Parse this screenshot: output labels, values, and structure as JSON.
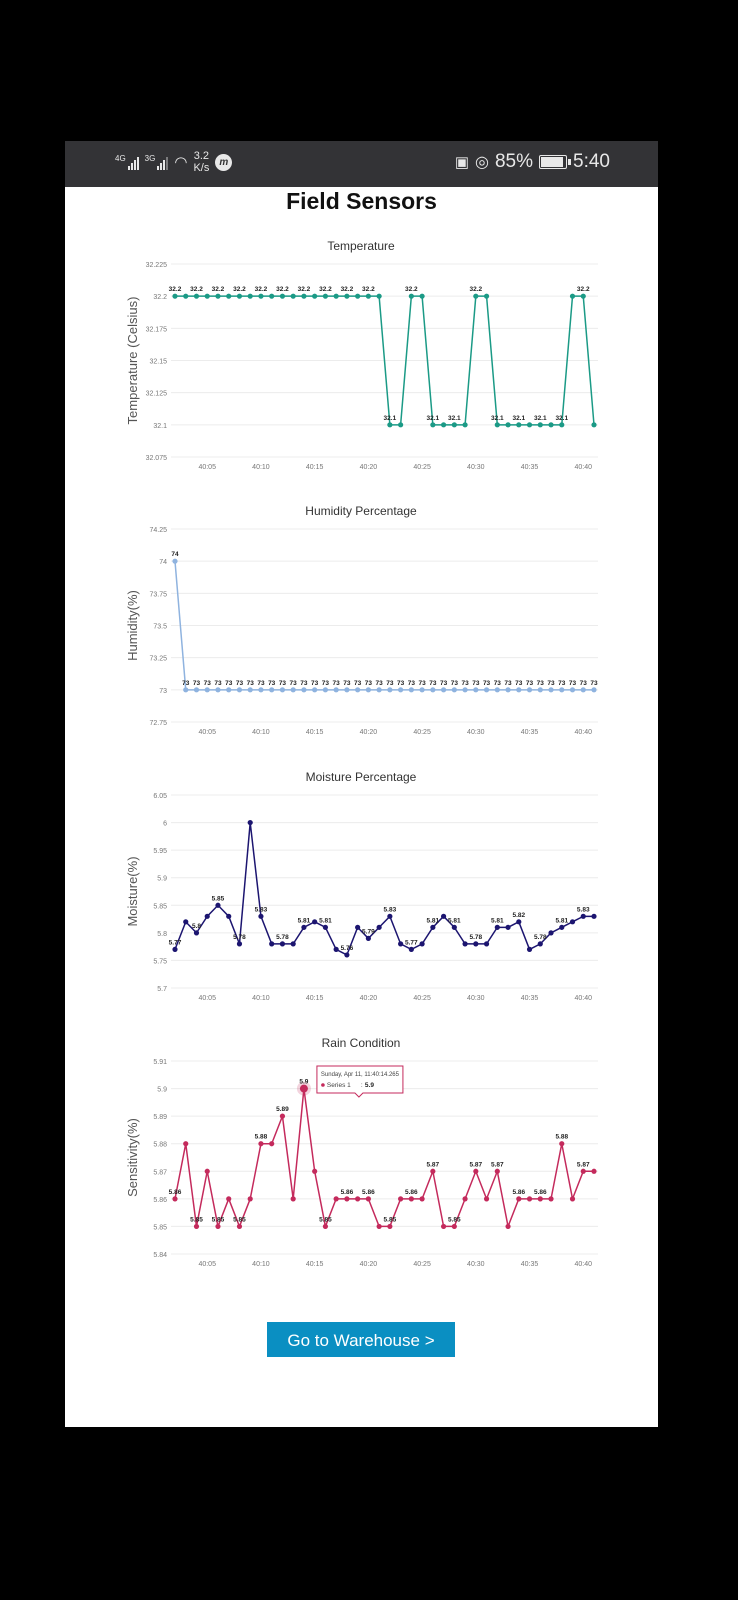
{
  "status_bar": {
    "net1": "4G",
    "net2": "3G",
    "speed_value": "3.2",
    "speed_unit": "K/s",
    "battery": "85%",
    "time": "5:40",
    "battery_level": 0.85
  },
  "page": {
    "title": "Field Sensors",
    "button_label": "Go to Warehouse >"
  },
  "chart_data": [
    {
      "type": "line",
      "title": "Temperature",
      "ylabel": "Temperature (Celsius)",
      "xlabel": "",
      "color": "#1b9a86",
      "ylim": [
        32.075,
        32.225
      ],
      "yticks": [
        "32.075",
        "32.1",
        "32.125",
        "32.15",
        "32.175",
        "32.2",
        "32.225"
      ],
      "grid": true,
      "xticks": [
        "40:05",
        "40:10",
        "40:15",
        "40:20",
        "40:25",
        "40:30",
        "40:35",
        "40:40"
      ],
      "x": [
        "40:02",
        "40:03",
        "40:04",
        "40:05",
        "40:06",
        "40:07",
        "40:08",
        "40:09",
        "40:10",
        "40:11",
        "40:12",
        "40:13",
        "40:14",
        "40:15",
        "40:16",
        "40:17",
        "40:18",
        "40:19",
        "40:20",
        "40:21",
        "40:22",
        "40:23",
        "40:24",
        "40:25",
        "40:26",
        "40:27",
        "40:28",
        "40:29",
        "40:30",
        "40:31",
        "40:32",
        "40:33",
        "40:34",
        "40:35",
        "40:36",
        "40:37",
        "40:38",
        "40:39",
        "40:40",
        "40:41"
      ],
      "values": [
        32.2,
        32.2,
        32.2,
        32.2,
        32.2,
        32.2,
        32.2,
        32.2,
        32.2,
        32.2,
        32.2,
        32.2,
        32.2,
        32.2,
        32.2,
        32.2,
        32.2,
        32.2,
        32.2,
        32.2,
        32.1,
        32.1,
        32.2,
        32.2,
        32.1,
        32.1,
        32.1,
        32.1,
        32.2,
        32.2,
        32.1,
        32.1,
        32.1,
        32.1,
        32.1,
        32.1,
        32.1,
        32.2,
        32.2,
        32.1
      ]
    },
    {
      "type": "line",
      "title": "Humidity Percentage",
      "ylabel": "Humidity(%)",
      "xlabel": "",
      "color": "#8fb3df",
      "ylim": [
        72.75,
        74.25
      ],
      "yticks": [
        "72.75",
        "73",
        "73.25",
        "73.5",
        "73.75",
        "74",
        "74.25"
      ],
      "grid": true,
      "xticks": [
        "40:05",
        "40:10",
        "40:15",
        "40:20",
        "40:25",
        "40:30",
        "40:35",
        "40:40"
      ],
      "x": [
        "40:02",
        "40:03",
        "40:04",
        "40:05",
        "40:06",
        "40:07",
        "40:08",
        "40:09",
        "40:10",
        "40:11",
        "40:12",
        "40:13",
        "40:14",
        "40:15",
        "40:16",
        "40:17",
        "40:18",
        "40:19",
        "40:20",
        "40:21",
        "40:22",
        "40:23",
        "40:24",
        "40:25",
        "40:26",
        "40:27",
        "40:28",
        "40:29",
        "40:30",
        "40:31",
        "40:32",
        "40:33",
        "40:34",
        "40:35",
        "40:36",
        "40:37",
        "40:38",
        "40:39",
        "40:40",
        "40:41"
      ],
      "values": [
        74,
        73,
        73,
        73,
        73,
        73,
        73,
        73,
        73,
        73,
        73,
        73,
        73,
        73,
        73,
        73,
        73,
        73,
        73,
        73,
        73,
        73,
        73,
        73,
        73,
        73,
        73,
        73,
        73,
        73,
        73,
        73,
        73,
        73,
        73,
        73,
        73,
        73,
        73,
        73
      ]
    },
    {
      "type": "line",
      "title": "Moisture Percentage",
      "ylabel": "Moisture(%)",
      "xlabel": "",
      "color": "#1c1570",
      "ylim": [
        5.7,
        6.05
      ],
      "yticks": [
        "5.7",
        "5.75",
        "5.8",
        "5.85",
        "5.9",
        "5.95",
        "6",
        "6.05"
      ],
      "grid": true,
      "xticks": [
        "40:05",
        "40:10",
        "40:15",
        "40:20",
        "40:25",
        "40:30",
        "40:35",
        "40:40"
      ],
      "x": [
        "40:02",
        "40:03",
        "40:04",
        "40:05",
        "40:06",
        "40:07",
        "40:08",
        "40:09",
        "40:10",
        "40:11",
        "40:12",
        "40:13",
        "40:14",
        "40:15",
        "40:16",
        "40:17",
        "40:18",
        "40:19",
        "40:20",
        "40:21",
        "40:22",
        "40:23",
        "40:24",
        "40:25",
        "40:26",
        "40:27",
        "40:28",
        "40:29",
        "40:30",
        "40:31",
        "40:32",
        "40:33",
        "40:34",
        "40:35",
        "40:36",
        "40:37",
        "40:38",
        "40:39",
        "40:40",
        "40:41"
      ],
      "values": [
        5.77,
        5.82,
        5.8,
        5.83,
        5.85,
        5.83,
        5.78,
        6,
        5.83,
        5.78,
        5.78,
        5.78,
        5.81,
        5.82,
        5.81,
        5.77,
        5.76,
        5.81,
        5.79,
        5.81,
        5.83,
        5.78,
        5.77,
        5.78,
        5.81,
        5.83,
        5.81,
        5.78,
        5.78,
        5.78,
        5.81,
        5.81,
        5.82,
        5.77,
        5.78,
        5.8,
        5.81,
        5.82,
        5.83,
        5.83
      ]
    },
    {
      "type": "line",
      "title": "Rain Condition",
      "ylabel": "Sensitivity(%)",
      "xlabel": "",
      "color": "#c42a5c",
      "ylim": [
        5.84,
        5.91
      ],
      "yticks": [
        "5.84",
        "5.85",
        "5.86",
        "5.87",
        "5.88",
        "5.89",
        "5.9",
        "5.91"
      ],
      "grid": true,
      "xticks": [
        "40:05",
        "40:10",
        "40:15",
        "40:20",
        "40:25",
        "40:30",
        "40:35",
        "40:40"
      ],
      "x": [
        "40:02",
        "40:03",
        "40:04",
        "40:05",
        "40:06",
        "40:07",
        "40:08",
        "40:09",
        "40:10",
        "40:11",
        "40:12",
        "40:13",
        "40:14",
        "40:15",
        "40:16",
        "40:17",
        "40:18",
        "40:19",
        "40:20",
        "40:21",
        "40:22",
        "40:23",
        "40:24",
        "40:25",
        "40:26",
        "40:27",
        "40:28",
        "40:29",
        "40:30",
        "40:31",
        "40:32",
        "40:33",
        "40:34",
        "40:35",
        "40:36",
        "40:37",
        "40:38",
        "40:39",
        "40:40",
        "40:41"
      ],
      "values": [
        5.86,
        5.88,
        5.85,
        5.87,
        5.85,
        5.86,
        5.85,
        5.86,
        5.88,
        5.88,
        5.89,
        5.86,
        5.9,
        5.87,
        5.85,
        5.86,
        5.86,
        5.86,
        5.86,
        5.85,
        5.85,
        5.86,
        5.86,
        5.86,
        5.87,
        5.85,
        5.85,
        5.86,
        5.87,
        5.86,
        5.87,
        5.85,
        5.86,
        5.86,
        5.86,
        5.86,
        5.88,
        5.86,
        5.87,
        5.87
      ],
      "tooltip": {
        "index": 12,
        "date": "Sunday, Apr 11, 11:40:14.265",
        "series": "Series 1",
        "value": "5.9"
      }
    }
  ]
}
